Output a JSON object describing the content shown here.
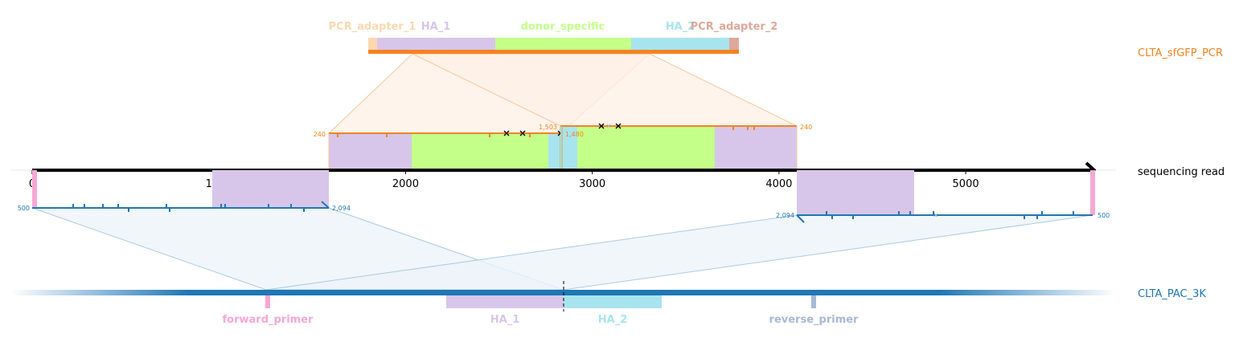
{
  "colors": {
    "sequencing_read": "#000000",
    "clta_sfgfp_pcr": "#f5821f",
    "clta_pac_3k": "#1f77b4",
    "pcr_adapter_1": "#fbd8b0",
    "ha_1": "#d7c6ea",
    "donor_specific": "#c4ff8a",
    "ha_2": "#a8e4ee",
    "pcr_adapter_2": "#dfa89a",
    "forward_primer": "#f7a7d6",
    "reverse_primer": "#a9b8d6",
    "pcr_mapping_fill": "#fdf0e6",
    "pcr_mapping_line": "#f9c79a",
    "pac_mapping_fill": "#eef4f9",
    "pac_mapping_line": "#a9cbe3"
  },
  "tracks": {
    "pcr": {
      "label": "CLTA_sfGFP_PCR"
    },
    "read": {
      "label": "sequencing read"
    },
    "pac": {
      "label": "CLTA_PAC_3K"
    }
  },
  "pcr_features": [
    {
      "id": "pcr_adapter_1",
      "label": "PCR_adapter_1"
    },
    {
      "id": "ha_1",
      "label": "HA_1"
    },
    {
      "id": "donor_specific",
      "label": "donor_specific"
    },
    {
      "id": "ha_2",
      "label": "HA_2"
    },
    {
      "id": "pcr_adapter_2",
      "label": "PCR_adapter_2"
    }
  ],
  "pac_features": [
    {
      "id": "forward_primer",
      "label": "forward_primer"
    },
    {
      "id": "ha_1",
      "label": "HA_1"
    },
    {
      "id": "ha_2",
      "label": "HA_2"
    },
    {
      "id": "reverse_primer",
      "label": "reverse_primer"
    }
  ],
  "read_axis": {
    "ticks": [
      "0",
      "1000",
      "2000",
      "3000",
      "4000",
      "5000"
    ],
    "tick_values": [
      0,
      1000,
      2000,
      3000,
      4000,
      5000
    ],
    "range": [
      0,
      5680
    ]
  },
  "alignment_labels": {
    "pcr_left_start": "240",
    "pcr_left_end": "1,503",
    "pcr_right_start": "1,480",
    "pcr_right_end": "240",
    "pac_left_start": "500",
    "pac_left_end": "2,094",
    "pac_right_start": "2,094",
    "pac_right_end": "500"
  }
}
